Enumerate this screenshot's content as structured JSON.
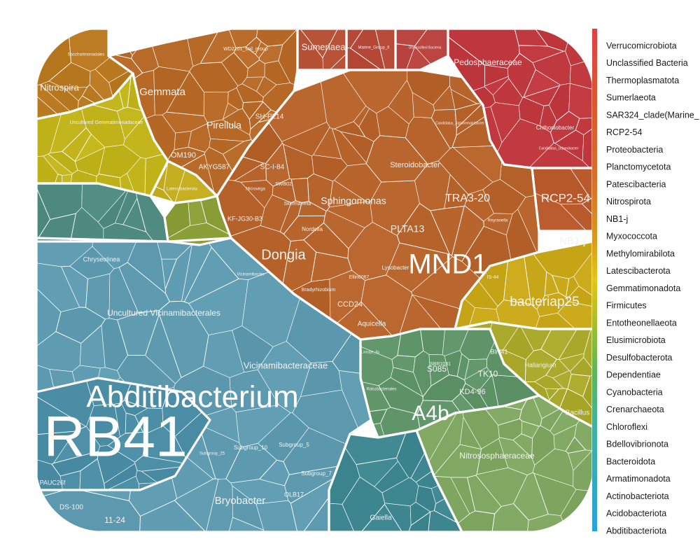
{
  "chart_data": {
    "type": "voronoi-treemap",
    "legend_position": "right",
    "legend": [
      "Verrucomicrobiota",
      "Unclassified Bacteria",
      "Thermoplasmatota",
      "Sumerlaeota",
      "SAR324_clade(Marine_",
      "RCP2-54",
      "Proteobacteria",
      "Planctomycetota",
      "Patescibacteria",
      "Nitrospirota",
      "NB1-j",
      "Myxococcota",
      "Methylomirabilota",
      "Latescibacterota",
      "Gemmatimonadota",
      "Firmicutes",
      "Entotheonellaeota",
      "Elusimicrobiota",
      "Desulfobacterota",
      "Dependentiae",
      "Cyanobacteria",
      "Crenarchaeota",
      "Chloroflexi",
      "Bdellovibrionota",
      "Bacteroidota",
      "Armatimonadota",
      "Actinobacteriota",
      "Acidobacteriota",
      "Abditibacteriota"
    ],
    "colors": {
      "Verrucomicrobiota": "#c0393f",
      "Unclassified Bacteria": "#b8433f",
      "Thermoplasmatota": "#b84a3a",
      "Sumerlaeota": "#b55035",
      "RCP2-54": "#b85a2c",
      "Proteobacteria": "#b5632a",
      "Planctomycetota": "#b86b28",
      "Nitrospirota": "#b8781f",
      "NB1-j": "#c9a81a",
      "Latescibacterota": "#c3ad1f",
      "Gemmatimonadota": "#c2b41b",
      "Firmicutes": "#a9a82a",
      "Entotheonellaeota": "#8a9e38",
      "Crenarchaeota": "#80a862",
      "Chloroflexi": "#5e9468",
      "Bacteroidota": "#4f8a80",
      "Actinobacteriota": "#3e8790",
      "Acidobacteriota": "#5e9bb1",
      "Abditibacteriota": "#4a8da5"
    },
    "big_labels": [
      "RB41",
      "Abditibacterium",
      "MND1",
      "A4b",
      "Dongia",
      "bacteriap25",
      "Sphingomonas",
      "Nitrososphaeraceae",
      "Bryobacter",
      "Vicinamibacteraceae",
      "Uncultured Vicinamibacterales",
      "Steroidobacter",
      "Pirellula",
      "Gemmata",
      "Pedosphaeraceae",
      "Nitrospira",
      "Sumerlaea",
      "TRA3-20",
      "RCP2-54",
      "NB1-j",
      "PLTA13",
      "Chryseolinea",
      "Gaiella",
      "11-24",
      "Bacillus",
      "Haliangium",
      "Aquicella",
      "CCD24",
      "S085",
      "KD4-96",
      "TK10",
      "Uncultured Gemmatimonadaceae",
      "Subgroup_10",
      "Subgroup_5",
      "Subgroup_7",
      "Subgroup_25",
      "OLB17",
      "SC-I-84",
      "KF-JG30-B3",
      "AKYG587",
      "OM190",
      "SH-PL14",
      "Blrii41",
      "Chthoniobacter",
      "Lysobacter",
      "Ellin6067",
      "Nordella",
      "Latescibacterota",
      "Rokubacteriales",
      "WD2101_soil_group",
      "Marine_Group_II",
      "Unclassified Bacteria",
      "IS-44",
      "SBR1031",
      "Bradyrhizobium",
      "SWB02",
      "Skermanella",
      "Microvirga",
      "Lineage_IIa",
      "Vicinamibacter",
      "PAUC26f",
      "DS-100",
      "Saccharimonadales",
      "Candidatus_Udaeobacter",
      "Candidatus_Xiphinematobacter",
      "Reyranella"
    ]
  }
}
